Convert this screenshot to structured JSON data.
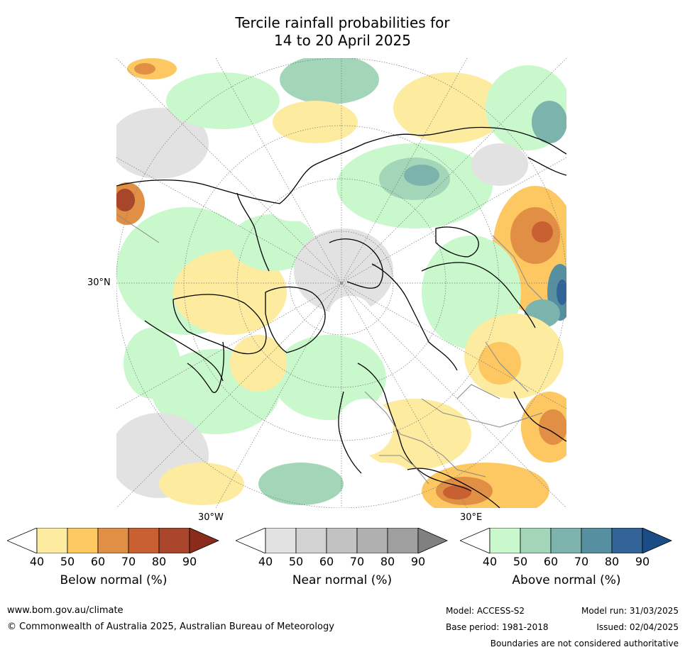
{
  "title": {
    "line1": "Tercile rainfall probabilities for",
    "line2": "14 to 20 April 2025"
  },
  "map": {
    "lat_label": "30°N",
    "lon_labels": {
      "west": "30°W",
      "east": "30°E"
    }
  },
  "colorbars": [
    {
      "label": "Below normal (%)",
      "ticks": [
        "40",
        "50",
        "60",
        "70",
        "80",
        "90"
      ],
      "colors": [
        "#fdeb9f",
        "#fdc761",
        "#e08f45",
        "#c96031",
        "#a8452a",
        "#8a2b1b"
      ]
    },
    {
      "label": "Near normal (%)",
      "ticks": [
        "40",
        "50",
        "60",
        "70",
        "80",
        "90"
      ],
      "colors": [
        "#e2e2e2",
        "#d2d2d2",
        "#c2c2c2",
        "#b0b0b0",
        "#9f9f9f",
        "#808080"
      ]
    },
    {
      "label": "Above normal (%)",
      "ticks": [
        "40",
        "50",
        "60",
        "70",
        "80",
        "90"
      ],
      "colors": [
        "#c8f8cc",
        "#a3d6b8",
        "#7cb3ac",
        "#5690a0",
        "#326498",
        "#1c4c86"
      ]
    }
  ],
  "footer": {
    "website": "www.bom.gov.au/climate",
    "copyright": "© Commonwealth of Australia 2025, Australian Bureau of Meteorology",
    "model": "Model: ACCESS-S2",
    "base_period": "Base period: 1981-2018",
    "model_run": "Model run: 31/03/2025",
    "issued": "Issued: 02/04/2025",
    "disclaimer": "Boundaries are not considered authoritative"
  }
}
